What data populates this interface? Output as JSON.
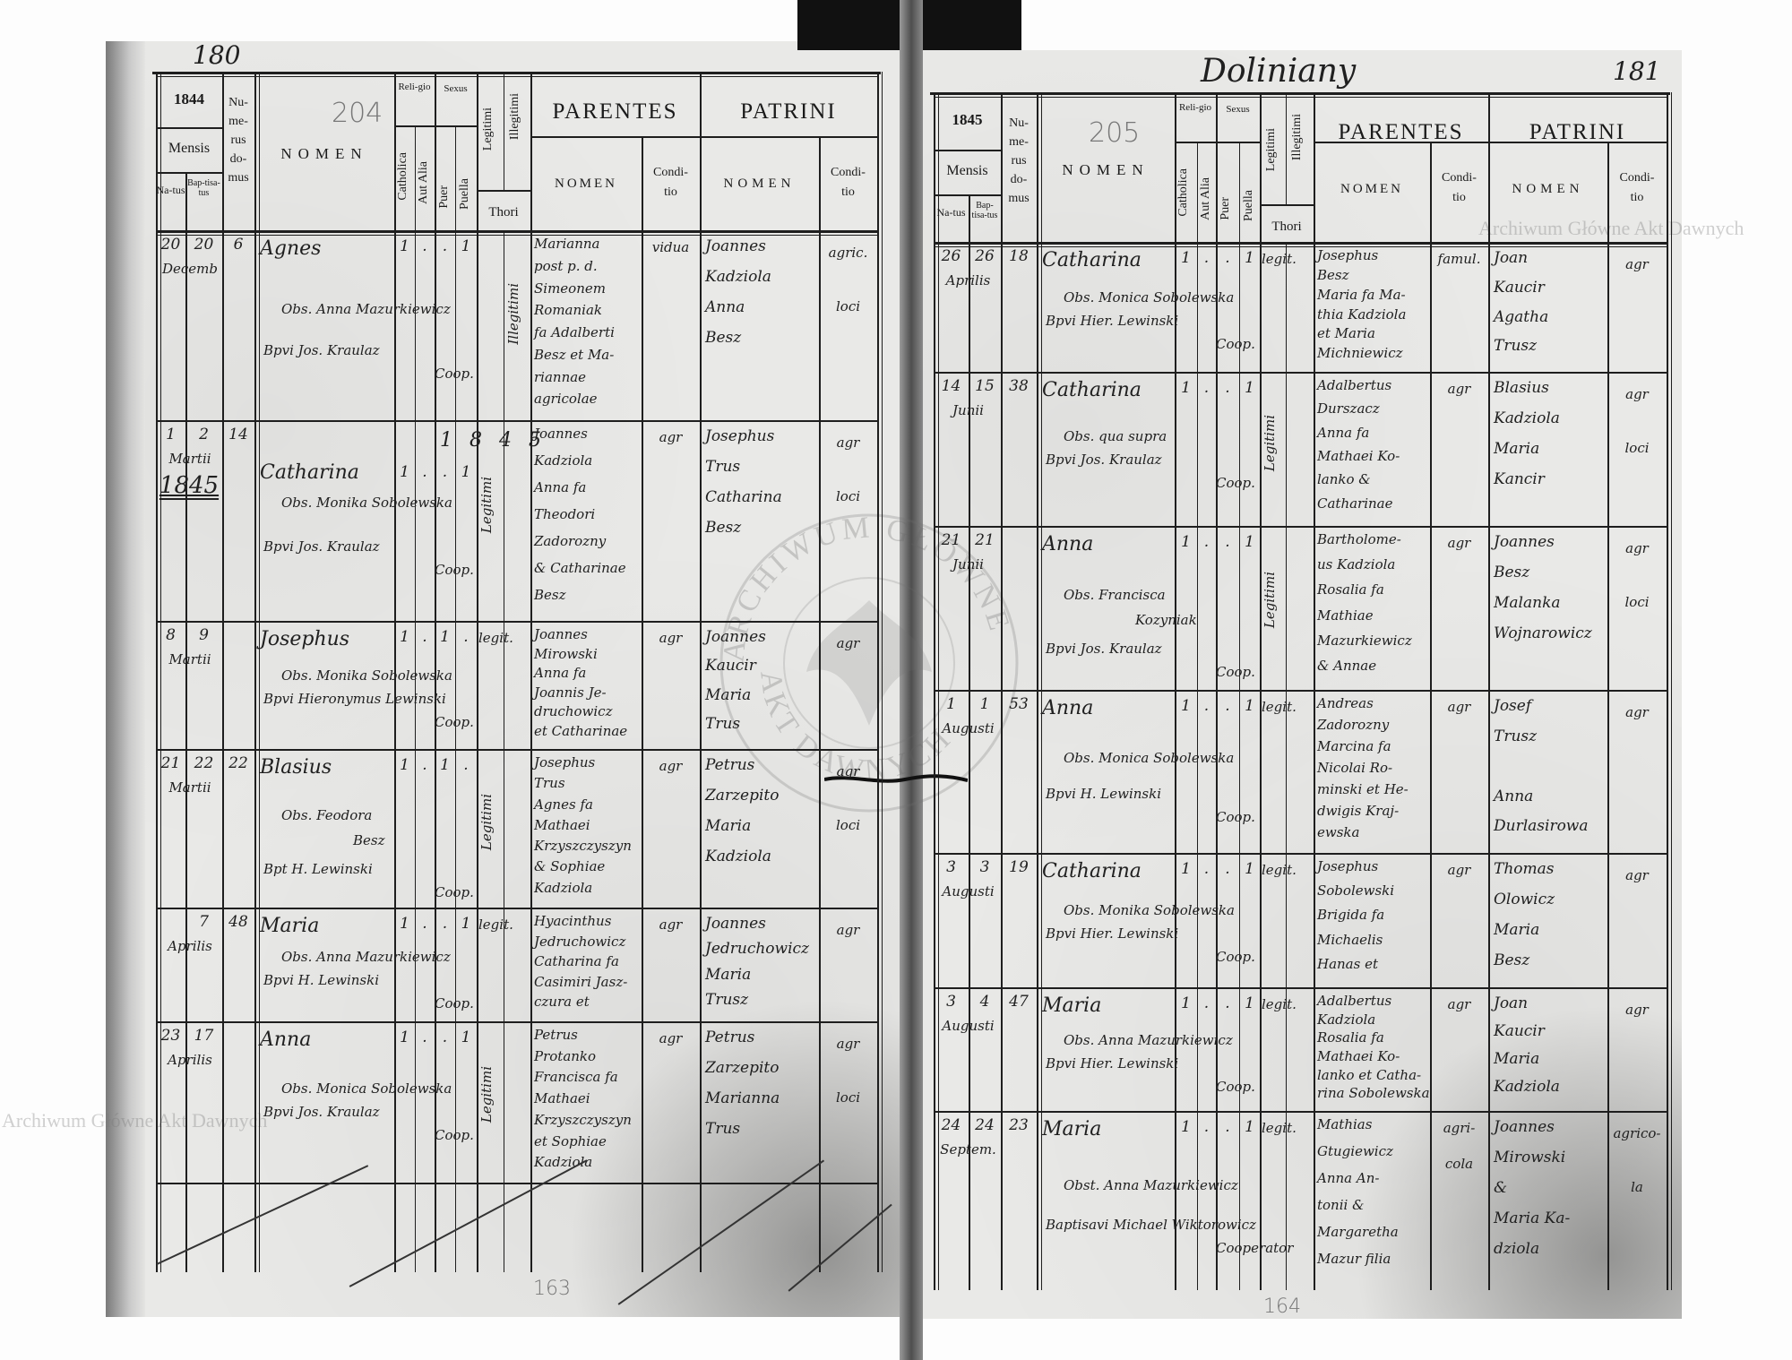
{
  "header": {
    "mensis": "Mensis",
    "natus": "Na-tus",
    "baptisatus": "Bap-tisa-tus",
    "numerus_domus": "Nu-me-rus do-mus",
    "nomen": "NOMEN",
    "religio": "Reli-gio",
    "catholica": "Catholica",
    "aut_alia": "Aut Alia",
    "sexus": "Sexus",
    "puer": "Puer",
    "puella": "Puella",
    "legitimi": "Legitimi",
    "illegitimi": "Illegitimi",
    "thori": "Thori",
    "parentes": "PARENTES",
    "patrini": "PATRINI",
    "sub_nomen": "NOMEN",
    "conditio": "Condi-tio"
  },
  "watermark": "Archiwum Główne Akt Dawnych",
  "stamp": {
    "outer": "ARCHIWUM GŁÓWNE",
    "lower": "AKT DAWNYCH"
  },
  "left_page": {
    "page_number": "180",
    "register_number": "204",
    "year": "1844",
    "footer_number": "163",
    "entries": [
      {
        "natus": "20",
        "baptisatus": "20",
        "mensis": "Decemb",
        "domus": "6",
        "nomen": "Agnes",
        "catholica": "1",
        "aut_alia": ".",
        "puer": ".",
        "puella": "1",
        "legitimi": "Illegitimi",
        "obstetrix": "Obs. Anna Mazurkiewicz",
        "baptizans": "Bpvi Jos. Kraulaz",
        "coop": "Coop.",
        "parentes": [
          "Marianna",
          "post p. d.",
          "Simeonem",
          "Romaniak",
          "fa Adalberti",
          "Besz et Ma-",
          "riannae",
          "agricolae"
        ],
        "parentes_conditio": [
          "vidua"
        ],
        "patrini": [
          "Joannes",
          "Kadziola",
          "Anna",
          "Besz"
        ],
        "patrini_conditio": [
          "agric.",
          "loci"
        ]
      },
      {
        "natus": "1",
        "baptisatus": "2",
        "mensis": "Martii",
        "year_note": "1845",
        "domus": "14",
        "nomen": "Catharina",
        "catholica": "1",
        "aut_alia": ".",
        "puer": ".",
        "puella": "1",
        "legitimi": "Legitimi",
        "row_note": "1 8 4 5",
        "obstetrix": "Obs. Monika Sobolewska",
        "baptizans": "Bpvi Jos. Kraulaz",
        "coop": "Coop.",
        "parentes": [
          "Joannes",
          "Kadziola",
          "Anna fa",
          "Theodori",
          "Zadorozny",
          "& Catharinae",
          "Besz"
        ],
        "parentes_conditio": [
          "agr"
        ],
        "patrini": [
          "Josephus",
          "Trus",
          "Catharina",
          "Besz"
        ],
        "patrini_conditio": [
          "agr",
          "loci"
        ]
      },
      {
        "natus": "8",
        "baptisatus": "9",
        "mensis": "Martii",
        "domus": "",
        "nomen": "Josephus",
        "catholica": "1",
        "aut_alia": ".",
        "puer": "1",
        "puella": ".",
        "legitimi": "legit.",
        "obstetrix": "Obs. Monika Sobolewska",
        "baptizans": "Bpvi Hieronymus Lewinski",
        "coop": "Coop.",
        "parentes": [
          "Joannes",
          "Mirowski",
          "Anna fa",
          "Joannis Je-",
          "druchowicz",
          "et Catharinae"
        ],
        "parentes_conditio": [
          "agr"
        ],
        "patrini": [
          "Joannes",
          "Kaucir",
          "Maria",
          "Trus"
        ],
        "patrini_conditio": [
          "agr"
        ]
      },
      {
        "natus": "21",
        "baptisatus": "22",
        "mensis": "Martii",
        "domus": "22",
        "nomen": "Blasius",
        "catholica": "1",
        "aut_alia": ".",
        "puer": "1",
        "puella": ".",
        "legitimi": "Legitimi",
        "obstetrix": "Obs. Feodora",
        "obstetrix2": "Besz",
        "baptizans": "Bpt H. Lewinski",
        "coop": "Coop.",
        "parentes": [
          "Josephus",
          "Trus",
          "Agnes fa",
          "Mathaei",
          "Krzyszczyszyn",
          "& Sophiae",
          "Kadziola"
        ],
        "parentes_conditio": [
          "agr"
        ],
        "patrini": [
          "Petrus",
          "Zarzepito",
          "Maria",
          "Kadziola"
        ],
        "patrini_conditio": [
          "agr",
          "loci"
        ]
      },
      {
        "natus": "",
        "baptisatus": "7",
        "mensis": "Aprilis",
        "domus": "48",
        "nomen": "Maria",
        "catholica": "1",
        "aut_alia": ".",
        "puer": ".",
        "puella": "1",
        "legitimi": "legit.",
        "obstetrix": "Obs. Anna Mazurkiewicz",
        "baptizans": "Bpvi H. Lewinski",
        "coop": "Coop.",
        "parentes": [
          "Hyacinthus",
          "Jedruchowicz",
          "Catharina fa",
          "Casimiri Jasz-",
          "czura et"
        ],
        "parentes_conditio": [
          "agr"
        ],
        "patrini": [
          "Joannes",
          "Jedruchowicz",
          "Maria",
          "Trusz"
        ],
        "patrini_conditio": [
          "agr"
        ]
      },
      {
        "natus": "23",
        "baptisatus": "17",
        "mensis": "Aprilis",
        "domus": "",
        "nomen": "Anna",
        "catholica": "1",
        "aut_alia": ".",
        "puer": ".",
        "puella": "1",
        "legitimi": "Legitimi",
        "obstetrix": "Obs. Monica Sobolewska",
        "baptizans": "Bpvi Jos. Kraulaz",
        "coop": "Coop.",
        "parentes": [
          "Petrus",
          "Protanko",
          "Francisca fa",
          "Mathaei",
          "Krzyszczyszyn",
          "et Sophiae",
          "Kadziola"
        ],
        "parentes_conditio": [
          "agr"
        ],
        "patrini": [
          "Petrus",
          "Zarzepito",
          "Marianna",
          "Trus"
        ],
        "patrini_conditio": [
          "agr",
          "loci"
        ]
      }
    ]
  },
  "right_page": {
    "page_number": "181",
    "parish": "Doliniany",
    "register_number": "205",
    "year": "1845",
    "footer_number": "164",
    "entries": [
      {
        "natus": "26",
        "baptisatus": "26",
        "mensis": "Aprilis",
        "domus": "18",
        "nomen": "Catharina",
        "catholica": "1",
        "aut_alia": ".",
        "puer": ".",
        "puella": "1",
        "legitimi": "legit.",
        "obstetrix": "Obs. Monica Sobolewska",
        "baptizans": "Bpvi Hier. Lewinski",
        "coop": "Coop.",
        "parentes": [
          "Josephus",
          "Besz",
          "Maria fa Ma-",
          "thia Kadziola",
          "et Maria",
          "Michniewicz"
        ],
        "parentes_conditio": [
          "famul."
        ],
        "patrini": [
          "Joan",
          "Kaucir",
          "Agatha",
          "Trusz"
        ],
        "patrini_conditio": [
          "agr"
        ]
      },
      {
        "natus": "14",
        "baptisatus": "15",
        "mensis": "Junii",
        "domus": "38",
        "nomen": "Catharina",
        "catholica": "1",
        "aut_alia": ".",
        "puer": ".",
        "puella": "1",
        "legitimi": "Legitimi",
        "obstetrix": "Obs. qua supra",
        "baptizans": "Bpvi Jos. Kraulaz",
        "coop": "Coop.",
        "parentes": [
          "Adalbertus",
          "Durszacz",
          "Anna fa",
          "Mathaei Ko-",
          "lanko &",
          "Catharinae"
        ],
        "parentes_conditio": [
          "agr"
        ],
        "patrini": [
          "Blasius",
          "Kadziola",
          "Maria",
          "Kancir"
        ],
        "patrini_conditio": [
          "agr",
          "loci"
        ]
      },
      {
        "natus": "21",
        "baptisatus": "21",
        "mensis": "Junii",
        "domus": "",
        "nomen": "Anna",
        "catholica": "1",
        "aut_alia": ".",
        "puer": ".",
        "puella": "1",
        "legitimi": "Legitimi",
        "obstetrix": "Obs. Francisca",
        "obstetrix2": "Kozyniak",
        "baptizans": "Bpvi Jos. Kraulaz",
        "coop": "Coop.",
        "parentes": [
          "Bartholome-",
          "us Kadziola",
          "Rosalia fa",
          "Mathiae",
          "Mazurkiewicz",
          "& Annae"
        ],
        "parentes_conditio": [
          "agr"
        ],
        "patrini": [
          "Joannes",
          "Besz",
          "Malanka",
          "Wojnarowicz"
        ],
        "patrini_conditio": [
          "agr",
          "loci"
        ]
      },
      {
        "natus": "1",
        "baptisatus": "1",
        "mensis": "Augusti",
        "domus": "53",
        "nomen": "Anna",
        "catholica": "1",
        "aut_alia": ".",
        "puer": ".",
        "puella": "1",
        "legitimi": "legit.",
        "obstetrix": "Obs. Monica Sobolewska",
        "baptizans": "Bpvi H. Lewinski",
        "coop": "Coop.",
        "parentes": [
          "Andreas",
          "Zadorozny",
          "Marcina fa",
          "Nicolai Ro-",
          "minski et He-",
          "dwigis Kraj-",
          "ewska"
        ],
        "parentes_conditio": [
          "agr"
        ],
        "patrini": [
          "Josef",
          "Trusz",
          "",
          "Anna",
          "Durlasirowa"
        ],
        "patrini_conditio": [
          "agr"
        ]
      },
      {
        "natus": "3",
        "baptisatus": "3",
        "mensis": "Augusti",
        "domus": "19",
        "nomen": "Catharina",
        "catholica": "1",
        "aut_alia": ".",
        "puer": ".",
        "puella": "1",
        "legitimi": "legit.",
        "obstetrix": "Obs. Monika Sobolewska",
        "baptizans": "Bpvi Hier. Lewinski",
        "coop": "Coop.",
        "parentes": [
          "Josephus",
          "Sobolewski",
          "Brigida fa",
          "Michaelis",
          "Hanas et"
        ],
        "parentes_conditio": [
          "agr"
        ],
        "patrini": [
          "Thomas",
          "Olowicz",
          "Maria",
          "Besz"
        ],
        "patrini_conditio": [
          "agr"
        ]
      },
      {
        "natus": "3",
        "baptisatus": "4",
        "mensis": "Augusti",
        "domus": "47",
        "nomen": "Maria",
        "catholica": "1",
        "aut_alia": ".",
        "puer": ".",
        "puella": "1",
        "legitimi": "legit.",
        "obstetrix": "Obs. Anna Mazurkiewicz",
        "baptizans": "Bpvi Hier. Lewinski",
        "coop": "Coop.",
        "parentes": [
          "Adalbertus",
          "Kadziola",
          "Rosalia fa",
          "Mathaei Ko-",
          "lanko et Catha-",
          "rina Sobolewska"
        ],
        "parentes_conditio": [
          "agr"
        ],
        "patrini": [
          "Joan",
          "Kaucir",
          "Maria",
          "Kadziola"
        ],
        "patrini_conditio": [
          "agr"
        ]
      },
      {
        "natus": "24",
        "baptisatus": "24",
        "mensis": "Septem.",
        "domus": "23",
        "nomen": "Maria",
        "catholica": "1",
        "aut_alia": ".",
        "puer": ".",
        "puella": "1",
        "legitimi": "legit.",
        "obstetrix": "Obst. Anna Mazurkiewicz",
        "baptizans": "Baptisavi Michael Wiktorowicz",
        "coop": "Cooperator",
        "parentes": [
          "Mathias",
          "Gtugiewicz",
          "Anna An-",
          "tonii &",
          "Margaretha",
          "Mazur filia"
        ],
        "parentes_conditio": [
          "agri-",
          "cola"
        ],
        "patrini": [
          "Joannes",
          "Mirowski",
          "&",
          "Maria Ka-",
          "dziola"
        ],
        "patrini_conditio": [
          "agrico-",
          "la"
        ]
      }
    ]
  }
}
